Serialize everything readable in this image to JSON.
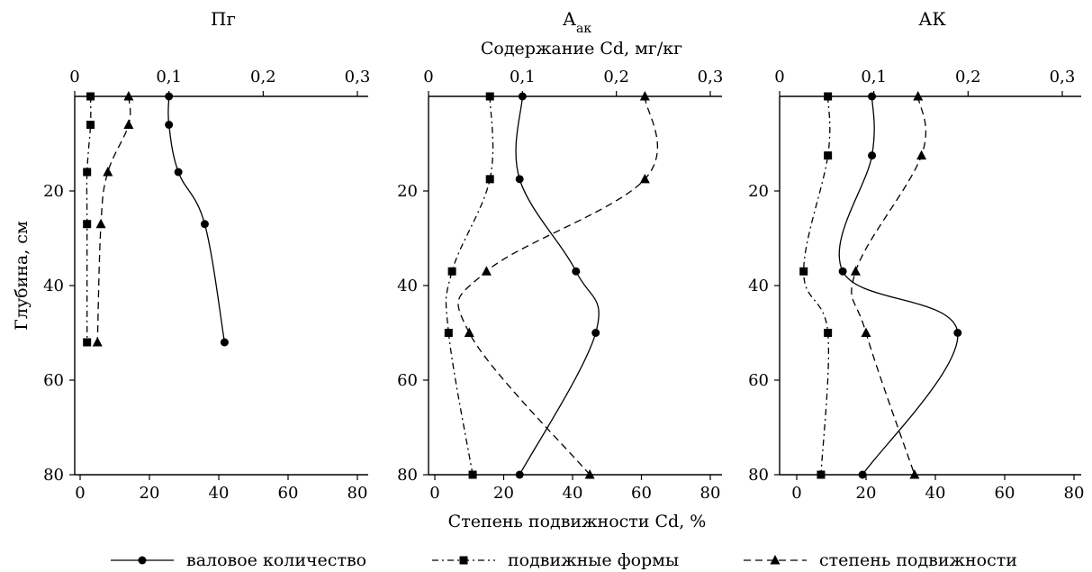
{
  "figure": {
    "top_axis_label": "Содержание Cd, мг/кг",
    "bottom_axis_label": "Степень подвижности Cd, %",
    "y_axis_label": "Глубина, см"
  },
  "legend": [
    {
      "name": "валовое количество",
      "style": "solid",
      "marker": "circle"
    },
    {
      "name": "подвижные формы",
      "style": "dashdot",
      "marker": "square"
    },
    {
      "name": "степень подвижности",
      "style": "dashed",
      "marker": "triangle"
    }
  ],
  "chart_data": [
    {
      "type": "line",
      "title": "Пг",
      "top_axis": {
        "range": [
          0,
          0.3
        ],
        "ticks": [
          "0",
          "0,1",
          "0,2",
          "0,3"
        ]
      },
      "bottom_axis": {
        "range": [
          0,
          80
        ],
        "ticks": [
          "0",
          "20",
          "40",
          "60",
          "80"
        ]
      },
      "y_axis": {
        "range": [
          0,
          80
        ],
        "inverted": true,
        "ticks": [
          "20",
          "40",
          "60",
          "80"
        ]
      },
      "series": [
        {
          "name": "валовое количество",
          "axis": "top",
          "style": "solid",
          "marker": "circle",
          "points": [
            {
              "x": 0.1,
              "y": 0
            },
            {
              "x": 0.1,
              "y": 6
            },
            {
              "x": 0.11,
              "y": 16
            },
            {
              "x": 0.138,
              "y": 27
            },
            {
              "x": 0.159,
              "y": 52
            }
          ]
        },
        {
          "name": "подвижные формы",
          "axis": "bottom",
          "style": "dashdot",
          "marker": "square",
          "points": [
            {
              "x": 3,
              "y": 0
            },
            {
              "x": 3,
              "y": 6
            },
            {
              "x": 2,
              "y": 16
            },
            {
              "x": 2,
              "y": 27
            },
            {
              "x": 2,
              "y": 52
            }
          ]
        },
        {
          "name": "степень подвижности",
          "axis": "bottom",
          "style": "dashed",
          "marker": "triangle",
          "points": [
            {
              "x": 14,
              "y": 0
            },
            {
              "x": 14,
              "y": 6
            },
            {
              "x": 8,
              "y": 16
            },
            {
              "x": 6,
              "y": 27
            },
            {
              "x": 5,
              "y": 52
            }
          ]
        }
      ]
    },
    {
      "type": "line",
      "title": "Аак",
      "title_sub": "ак",
      "top_axis": {
        "range": [
          0,
          0.3
        ],
        "ticks": [
          "0",
          "0,1",
          "0,2",
          "0,3"
        ]
      },
      "bottom_axis": {
        "range": [
          0,
          80
        ],
        "ticks": [
          "0",
          "20",
          "40",
          "60",
          "80"
        ]
      },
      "y_axis": {
        "range": [
          0,
          80
        ],
        "inverted": true,
        "ticks": [
          "20",
          "40",
          "60",
          "80"
        ]
      },
      "series": [
        {
          "name": "валовое количество",
          "axis": "top",
          "style": "solid",
          "marker": "circle",
          "points": [
            {
              "x": 0.1,
              "y": 0
            },
            {
              "x": 0.097,
              "y": 17.5
            },
            {
              "x": 0.157,
              "y": 37
            },
            {
              "x": 0.178,
              "y": 50
            },
            {
              "x": 0.097,
              "y": 80
            }
          ]
        },
        {
          "name": "подвижные формы",
          "axis": "bottom",
          "style": "dashdot",
          "marker": "square",
          "points": [
            {
              "x": 16,
              "y": 0
            },
            {
              "x": 16,
              "y": 17.5
            },
            {
              "x": 5,
              "y": 37
            },
            {
              "x": 4,
              "y": 50
            },
            {
              "x": 11,
              "y": 80
            }
          ]
        },
        {
          "name": "степень подвижности",
          "axis": "bottom",
          "style": "dashed",
          "marker": "triangle",
          "points": [
            {
              "x": 61,
              "y": 0
            },
            {
              "x": 61,
              "y": 17.5
            },
            {
              "x": 15,
              "y": 37
            },
            {
              "x": 10,
              "y": 50
            },
            {
              "x": 45,
              "y": 80
            }
          ]
        }
      ]
    },
    {
      "type": "line",
      "title": "АК",
      "top_axis": {
        "range": [
          0,
          0.3
        ],
        "ticks": [
          "0",
          "0,1",
          "0,2",
          "0,3"
        ]
      },
      "bottom_axis": {
        "range": [
          0,
          80
        ],
        "ticks": [
          "0",
          "20",
          "40",
          "60",
          "80"
        ]
      },
      "y_axis": {
        "range": [
          0,
          80
        ],
        "inverted": true,
        "ticks": [
          "20",
          "40",
          "60",
          "80"
        ]
      },
      "series": [
        {
          "name": "валовое количество",
          "axis": "top",
          "style": "solid",
          "marker": "circle",
          "points": [
            {
              "x": 0.098,
              "y": 0
            },
            {
              "x": 0.098,
              "y": 12.5
            },
            {
              "x": 0.067,
              "y": 37
            },
            {
              "x": 0.189,
              "y": 50
            },
            {
              "x": 0.088,
              "y": 80
            }
          ]
        },
        {
          "name": "подвижные формы",
          "axis": "bottom",
          "style": "dashdot",
          "marker": "square",
          "points": [
            {
              "x": 9,
              "y": 0
            },
            {
              "x": 9,
              "y": 12.5
            },
            {
              "x": 2,
              "y": 37
            },
            {
              "x": 9,
              "y": 50
            },
            {
              "x": 7,
              "y": 80
            }
          ]
        },
        {
          "name": "степень подвижности",
          "axis": "bottom",
          "style": "dashed",
          "marker": "triangle",
          "points": [
            {
              "x": 35,
              "y": 0
            },
            {
              "x": 36,
              "y": 12.5
            },
            {
              "x": 17,
              "y": 37
            },
            {
              "x": 20,
              "y": 50
            },
            {
              "x": 34,
              "y": 80
            }
          ]
        }
      ]
    }
  ]
}
